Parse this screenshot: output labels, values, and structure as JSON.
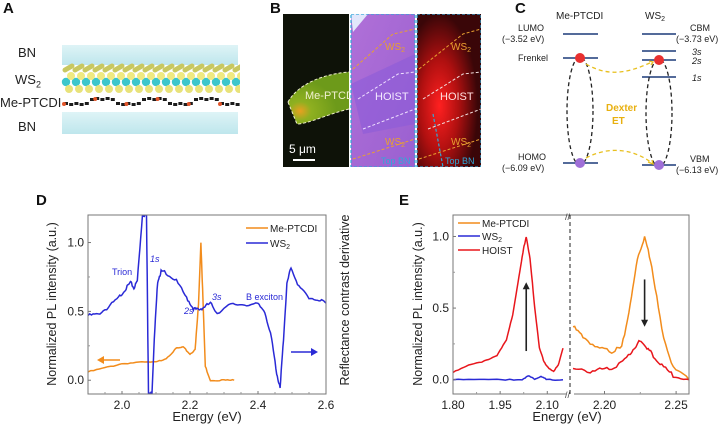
{
  "panels": {
    "A": {
      "label": "A",
      "layers": [
        "BN",
        "WS2",
        "Me-PTCDI",
        "BN"
      ],
      "colors": {
        "bn": "#bfe8ee",
        "ws2_s": "#e8e27a",
        "ws2_w": "#3cc6cc",
        "ptcdi": "#222222",
        "ptcdi_o": "#e2552a"
      }
    },
    "B": {
      "label": "B",
      "scale_bar": "5 μm",
      "strip1_label": "Me-PTCDI",
      "strip2_labels": {
        "top": "WS2",
        "mid": "HOIST",
        "bot": "WS2",
        "corner": "Top BN"
      },
      "strip3_labels": {
        "top": "WS2",
        "mid": "HOIST",
        "bot": "WS2",
        "corner": "Top BN"
      }
    },
    "C": {
      "label": "C",
      "left_title": "Me-PTCDI",
      "right_title": "WS2",
      "lumo": "LUMO",
      "lumo_val": "(−3.52 eV)",
      "frenkel": "Frenkel",
      "homo": "HOMO",
      "homo_val": "(−6.09 eV)",
      "cbm": "CBM",
      "cbm_val": "(−3.73 eV)",
      "s3": "3s",
      "s2": "2s",
      "s1": "1s",
      "vbm": "VBM",
      "vbm_val": "(−6.13 eV)",
      "dexter1": "Dexter",
      "dexter2": "ET"
    }
  },
  "chart_data": [
    {
      "id": "D",
      "label": "D",
      "type": "line",
      "xlabel": "Energy (eV)",
      "ylabel": "Normalized PL intensity (a.u.)",
      "y2label": "Reflectance contrast derivative",
      "xlim": [
        1.9,
        2.6
      ],
      "ylim": [
        -0.1,
        1.2
      ],
      "xticks": [
        "2.0",
        "2.2",
        "2.4",
        "2.6"
      ],
      "xtick_values": [
        2.0,
        2.2,
        2.4,
        2.6
      ],
      "yticks": [
        "0.0",
        "0.5",
        "1.0"
      ],
      "ytick_values": [
        0.0,
        0.5,
        1.0
      ],
      "legend": [
        "Me-PTCDI",
        "WS2"
      ],
      "legend_position": "top-right",
      "annotations": [
        "Trion",
        "1s",
        "2s",
        "3s",
        "B exciton"
      ],
      "series": [
        {
          "name": "Me-PTCDI",
          "color": "#f28c1c",
          "x": [
            1.9,
            1.95,
            2.0,
            2.05,
            2.1,
            2.13,
            2.16,
            2.18,
            2.2,
            2.215,
            2.225,
            2.232,
            2.238,
            2.245,
            2.26,
            2.3,
            2.33
          ],
          "y": [
            0.06,
            0.09,
            0.12,
            0.13,
            0.13,
            0.16,
            0.23,
            0.24,
            0.19,
            0.22,
            0.55,
            1.0,
            0.6,
            0.1,
            0.0,
            0.0,
            0.0
          ]
        },
        {
          "name": "WS2",
          "color": "#2a2ad6",
          "x": [
            1.9,
            1.93,
            1.96,
            1.99,
            2.01,
            2.025,
            2.035,
            2.045,
            2.06,
            2.072,
            2.078,
            2.083,
            2.088,
            2.095,
            2.105,
            2.115,
            2.13,
            2.16,
            2.19,
            2.21,
            2.225,
            2.24,
            2.26,
            2.28,
            2.32,
            2.36,
            2.4,
            2.42,
            2.44,
            2.455,
            2.465,
            2.475,
            2.485,
            2.497,
            2.52,
            2.55,
            2.58,
            2.6
          ],
          "y": [
            0.47,
            0.48,
            0.53,
            0.6,
            0.66,
            0.71,
            0.67,
            0.72,
            1.2,
            1.2,
            -0.1,
            -0.1,
            -0.1,
            0.3,
            0.72,
            0.79,
            0.78,
            0.72,
            0.6,
            0.52,
            0.51,
            0.53,
            0.56,
            0.49,
            0.55,
            0.55,
            0.55,
            0.5,
            0.3,
            0.05,
            -0.06,
            0.3,
            0.7,
            0.82,
            0.68,
            0.6,
            0.58,
            0.56
          ]
        }
      ]
    },
    {
      "id": "E",
      "label": "E",
      "type": "line",
      "xlabel": "Energy (eV)",
      "ylabel": "Normalized PL intensity (a.u.)",
      "xlim_left": [
        1.8,
        2.15
      ],
      "xlim_right": [
        2.178,
        2.259
      ],
      "ylim": [
        -0.1,
        1.15
      ],
      "xticks_left": [
        "1.80",
        "1.95",
        "2.10"
      ],
      "xtick_values_left": [
        1.8,
        1.95,
        2.1
      ],
      "xticks_right": [
        "2.20",
        "2.25"
      ],
      "xtick_values_right": [
        2.2,
        2.25
      ],
      "yticks": [
        "0.0",
        "0.5",
        "1.0"
      ],
      "ytick_values": [
        0.0,
        0.5,
        1.0
      ],
      "axis_break": true,
      "legend": [
        "Me-PTCDI",
        "WS2",
        "HOIST"
      ],
      "legend_position": "top-left",
      "series": [
        {
          "name": "Me-PTCDI",
          "color": "#f28c1c",
          "x": [
            2.178,
            2.185,
            2.195,
            2.205,
            2.212,
            2.218,
            2.223,
            2.228,
            2.233,
            2.24,
            2.248,
            2.259
          ],
          "y": [
            0.37,
            0.3,
            0.22,
            0.2,
            0.22,
            0.52,
            0.85,
            1.0,
            0.8,
            0.35,
            0.08,
            0.0
          ]
        },
        {
          "name": "WS2",
          "color": "#2a2ad6",
          "x": [
            1.8,
            1.9,
            1.98,
            2.02,
            2.04,
            2.06,
            2.08,
            2.1,
            2.15
          ],
          "y": [
            0.0,
            0.0,
            0.0,
            0.0,
            0.03,
            0.0,
            0.02,
            0.0,
            0.0
          ]
        },
        {
          "name": "HOIST",
          "color": "#e8161c",
          "x": [
            1.8,
            1.85,
            1.9,
            1.94,
            1.97,
            1.99,
            2.01,
            2.025,
            2.033,
            2.045,
            2.06,
            2.075,
            2.09,
            2.105,
            2.12,
            2.135,
            2.15
          ],
          "y": [
            0.05,
            0.1,
            0.13,
            0.17,
            0.28,
            0.45,
            0.72,
            0.92,
            1.0,
            0.85,
            0.5,
            0.22,
            0.12,
            0.08,
            0.06,
            0.1,
            0.22
          ]
        },
        {
          "name": "HOIST-right",
          "legend_ref": "HOIST",
          "color": "#e8161c",
          "x": [
            2.178,
            2.19,
            2.2,
            2.21,
            2.218,
            2.224,
            2.228,
            2.233,
            2.24,
            2.248,
            2.259
          ],
          "y": [
            0.07,
            0.06,
            0.07,
            0.1,
            0.18,
            0.27,
            0.25,
            0.18,
            0.1,
            0.03,
            0.0
          ]
        }
      ],
      "arrows": [
        {
          "direction": "up",
          "x": 2.033,
          "y_from": 0.2,
          "y_to": 0.68
        },
        {
          "direction": "down",
          "x": 2.228,
          "y_from": 0.7,
          "y_to": 0.37
        }
      ]
    }
  ]
}
